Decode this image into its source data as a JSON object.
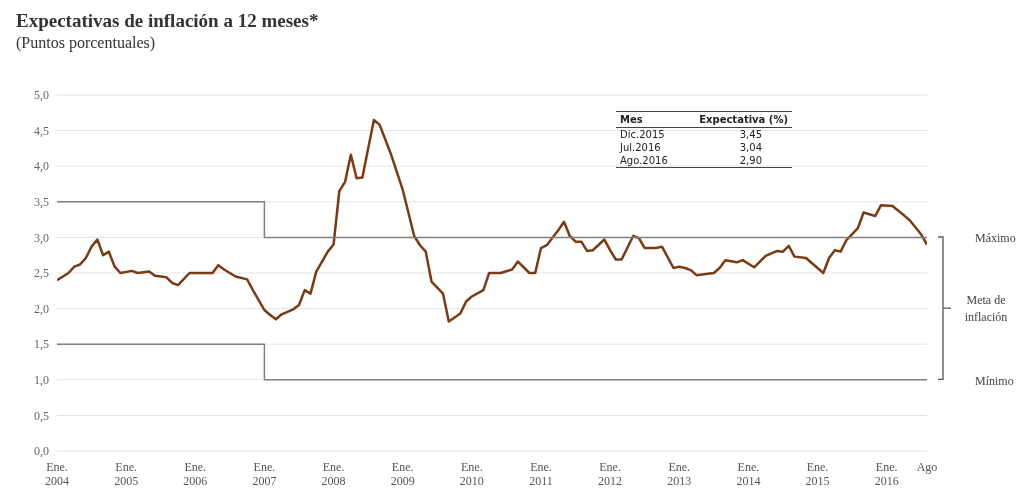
{
  "chart_data": {
    "type": "line",
    "title": "Expectativas de inflación a 12 meses*",
    "subtitle": "(Puntos porcentuales)",
    "xlim": [
      "2004-01",
      "2016-08"
    ],
    "xticks": [
      {
        "value": "2004-01",
        "label": "Ene.\n2004"
      },
      {
        "value": "2005-01",
        "label": "Ene.\n2005"
      },
      {
        "value": "2006-01",
        "label": "Ene.\n2006"
      },
      {
        "value": "2007-01",
        "label": "Ene.\n2007"
      },
      {
        "value": "2008-01",
        "label": "Ene.\n2008"
      },
      {
        "value": "2009-01",
        "label": "Ene.\n2009"
      },
      {
        "value": "2010-01",
        "label": "Ene.\n2010"
      },
      {
        "value": "2011-01",
        "label": "Ene.\n2011"
      },
      {
        "value": "2012-01",
        "label": "Ene.\n2012"
      },
      {
        "value": "2013-01",
        "label": "Ene.\n2013"
      },
      {
        "value": "2014-01",
        "label": "Ene.\n2014"
      },
      {
        "value": "2015-01",
        "label": "Ene.\n2015"
      },
      {
        "value": "2016-01",
        "label": "Ene.\n2016"
      },
      {
        "value": "2016-08",
        "label": "Ago"
      }
    ],
    "ylim": [
      0,
      5
    ],
    "yticks": [
      {
        "value": 0,
        "label": "0,0"
      },
      {
        "value": 0.5,
        "label": "0,5"
      },
      {
        "value": 1,
        "label": "1,0"
      },
      {
        "value": 1.5,
        "label": "1,5"
      },
      {
        "value": 2,
        "label": "2,0"
      },
      {
        "value": 2.5,
        "label": "2,5"
      },
      {
        "value": 3,
        "label": "3,0"
      },
      {
        "value": 3.5,
        "label": "3,5"
      },
      {
        "value": 4,
        "label": "4,0"
      },
      {
        "value": 4.5,
        "label": "4,5"
      },
      {
        "value": 5,
        "label": "5,0"
      }
    ],
    "grid": "y",
    "legend": false,
    "marker": "none",
    "line_style": "solid",
    "series": [
      {
        "color": "#7a3b12",
        "x": [
          "2004-01",
          "2004-03",
          "2004-04",
          "2004-05",
          "2004-06",
          "2004-07",
          "2004-08",
          "2004-09",
          "2004-10",
          "2004-11",
          "2004-12",
          "2005-02",
          "2005-03",
          "2005-05",
          "2005-06",
          "2005-08",
          "2005-09",
          "2005-10",
          "2005-12",
          "2006-02",
          "2006-04",
          "2006-05",
          "2006-06",
          "2006-08",
          "2006-10",
          "2006-11",
          "2007-01",
          "2007-02",
          "2007-03",
          "2007-04",
          "2007-06",
          "2007-07",
          "2007-08",
          "2007-09",
          "2007-10",
          "2007-12",
          "2008-01",
          "2008-02",
          "2008-03",
          "2008-04",
          "2008-05",
          "2008-06",
          "2008-08",
          "2008-09",
          "2008-11",
          "2009-01",
          "2009-03",
          "2009-04",
          "2009-05",
          "2009-06",
          "2009-08",
          "2009-09",
          "2009-11",
          "2009-12",
          "2010-01",
          "2010-03",
          "2010-04",
          "2010-06",
          "2010-08",
          "2010-09",
          "2010-11",
          "2010-12",
          "2011-01",
          "2011-02",
          "2011-04",
          "2011-05",
          "2011-06",
          "2011-07",
          "2011-08",
          "2011-09",
          "2011-10",
          "2011-12",
          "2012-01",
          "2012-02",
          "2012-03",
          "2012-05",
          "2012-06",
          "2012-07",
          "2012-09",
          "2012-10",
          "2012-12",
          "2013-01",
          "2013-02",
          "2013-03",
          "2013-04",
          "2013-07",
          "2013-08",
          "2013-09",
          "2013-11",
          "2013-12",
          "2014-02",
          "2014-04",
          "2014-06",
          "2014-07",
          "2014-08",
          "2014-09",
          "2014-11",
          "2015-01",
          "2015-02",
          "2015-03",
          "2015-04",
          "2015-05",
          "2015-06",
          "2015-08",
          "2015-09",
          "2015-11",
          "2015-12",
          "2016-02",
          "2016-04",
          "2016-05",
          "2016-07",
          "2016-08"
        ],
        "values": [
          2.4,
          2.5,
          2.59,
          2.62,
          2.71,
          2.87,
          2.97,
          2.75,
          2.8,
          2.59,
          2.5,
          2.53,
          2.5,
          2.52,
          2.46,
          2.44,
          2.36,
          2.33,
          2.5,
          2.5,
          2.5,
          2.61,
          2.55,
          2.45,
          2.41,
          2.26,
          1.98,
          1.91,
          1.85,
          1.92,
          1.99,
          2.05,
          2.26,
          2.21,
          2.52,
          2.8,
          2.9,
          3.65,
          3.78,
          4.16,
          3.83,
          3.84,
          4.65,
          4.58,
          4.16,
          3.67,
          3.02,
          2.89,
          2.8,
          2.38,
          2.21,
          1.82,
          1.93,
          2.1,
          2.17,
          2.26,
          2.5,
          2.5,
          2.55,
          2.66,
          2.5,
          2.5,
          2.85,
          2.89,
          3.1,
          3.22,
          3.02,
          2.94,
          2.94,
          2.81,
          2.82,
          2.97,
          2.82,
          2.69,
          2.69,
          3.02,
          2.99,
          2.85,
          2.85,
          2.87,
          2.57,
          2.59,
          2.57,
          2.54,
          2.47,
          2.5,
          2.57,
          2.68,
          2.65,
          2.68,
          2.58,
          2.74,
          2.81,
          2.8,
          2.88,
          2.73,
          2.71,
          2.57,
          2.5,
          2.71,
          2.82,
          2.8,
          2.96,
          3.13,
          3.35,
          3.3,
          3.45,
          3.44,
          3.31,
          3.24,
          3.04,
          2.9
        ]
      },
      {
        "type": "step",
        "name": "Máximo",
        "color": "#808080",
        "x": [
          "2004-01",
          "2007-01",
          "2016-08"
        ],
        "values": [
          3.5,
          3.0,
          3.0
        ]
      },
      {
        "type": "step",
        "name": "Mínimo",
        "color": "#808080",
        "x": [
          "2004-01",
          "2007-01",
          "2016-08"
        ],
        "values": [
          1.5,
          1.0,
          1.0
        ]
      }
    ],
    "annotations": [
      "Meta de inflación",
      "Mes",
      "Expectativa (%)",
      "Dic.2015",
      "3,45",
      "Jul.2016",
      "3,04",
      "Ago.2016",
      "2,90"
    ]
  }
}
